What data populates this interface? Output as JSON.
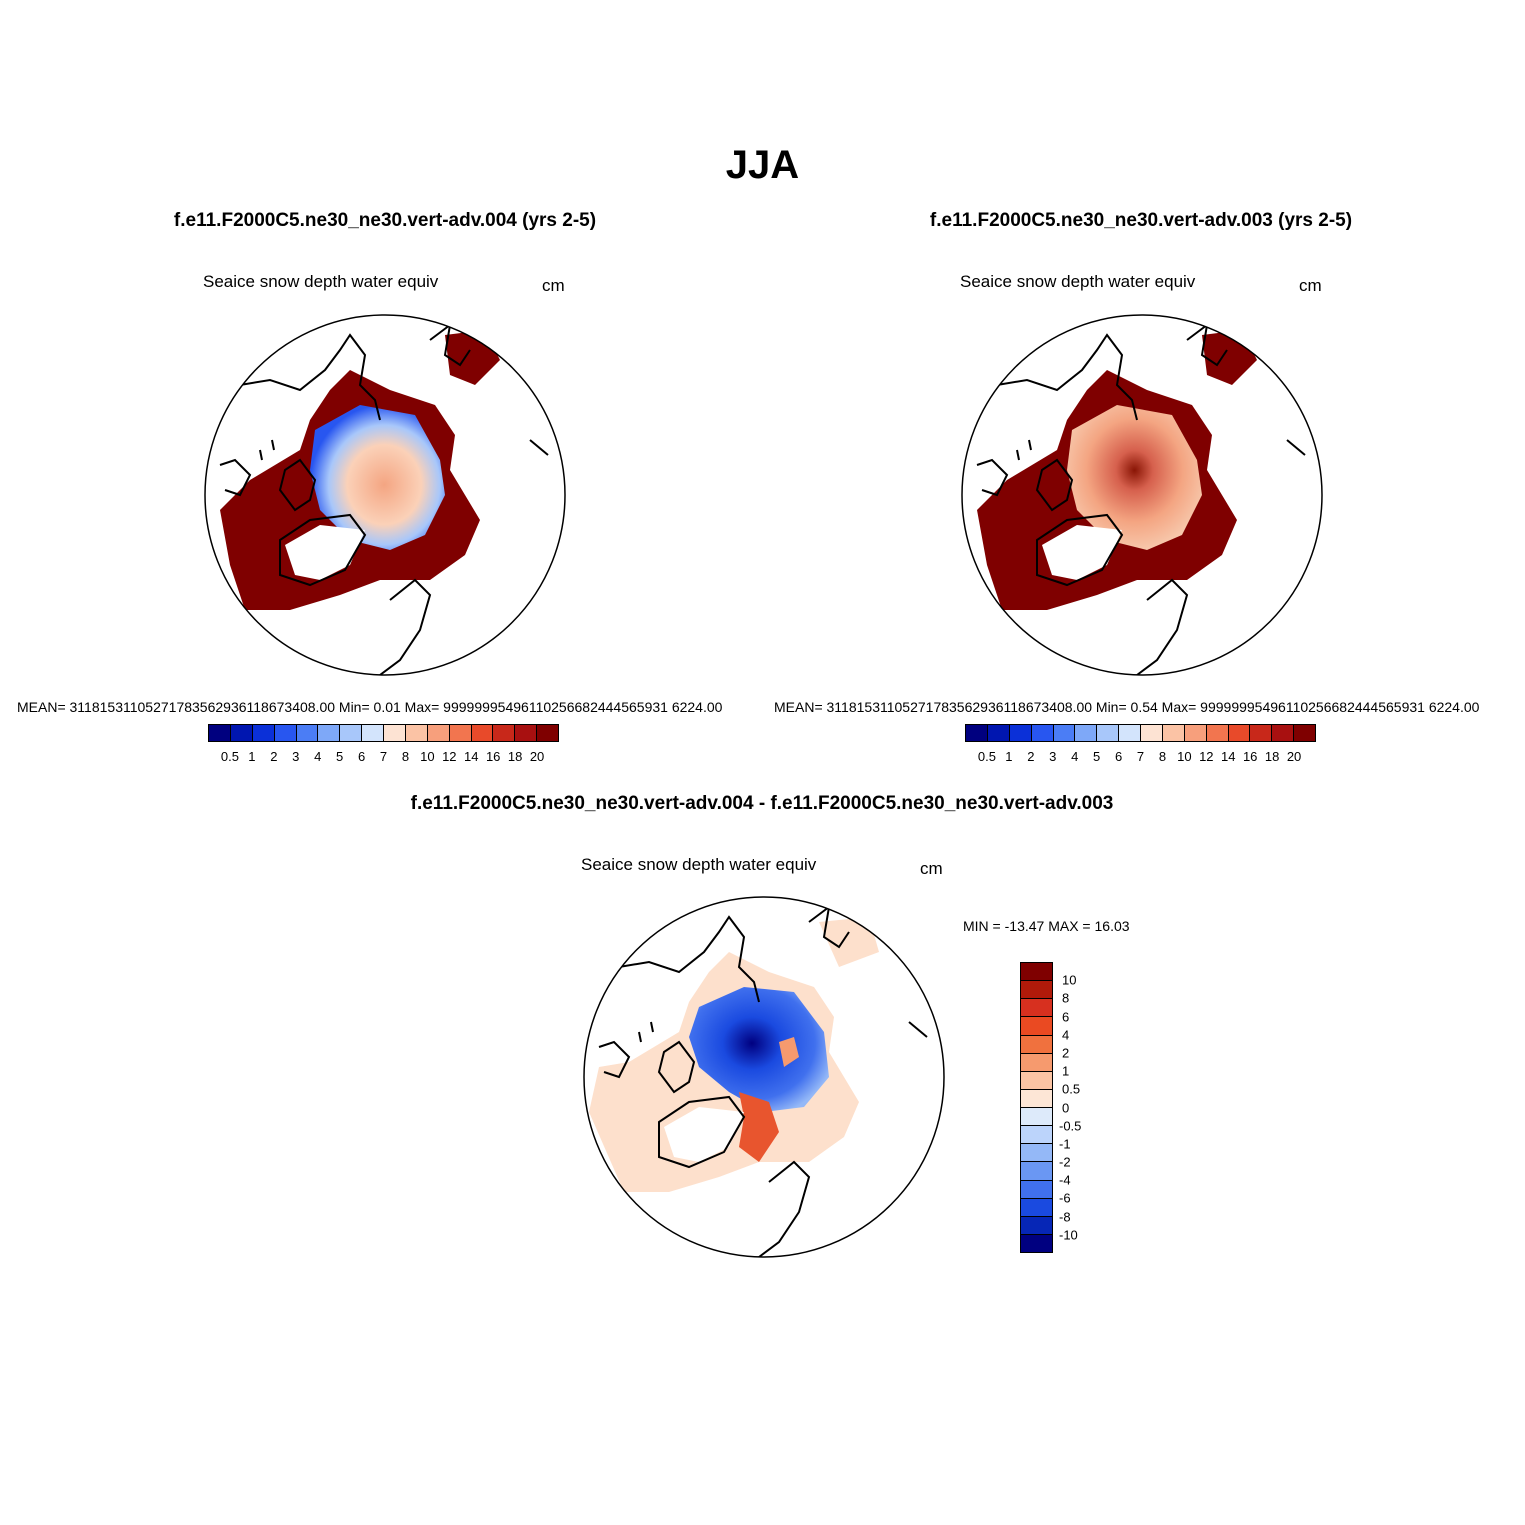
{
  "title": "JJA",
  "panels": [
    {
      "title": "f.e11.F2000C5.ne30_ne30.vert-adv.004 (yrs 2-5)",
      "variable": "Seaice snow depth water equiv",
      "units": "cm",
      "stats": "MEAN= 31181531105271783562936118673408.00  Min=   0.01  Max= 99999995496110256682444565931 6224.00",
      "field_peak_color": "#f4a582"
    },
    {
      "title": "f.e11.F2000C5.ne30_ne30.vert-adv.003 (yrs 2-5)",
      "variable": "Seaice snow depth water equiv",
      "units": "cm",
      "stats": "MEAN= 31181531105271783562936118673408.00  Min=   0.54  Max= 99999995496110256682444565931 6224.00",
      "field_peak_color": "#d6604d"
    }
  ],
  "colorbar": {
    "colors": [
      "#00007f",
      "#0016b0",
      "#0b30d8",
      "#2856f0",
      "#4b7df5",
      "#7ea8f8",
      "#a8c7fa",
      "#d3e4fc",
      "#fde3d3",
      "#fbc3a5",
      "#f79f7c",
      "#f2754f",
      "#e84a2a",
      "#c8281a",
      "#a81010",
      "#7f0000"
    ],
    "labels": [
      "0.5",
      "1",
      "2",
      "3",
      "4",
      "5",
      "6",
      "7",
      "8",
      "10",
      "12",
      "14",
      "16",
      "18",
      "20"
    ]
  },
  "diff": {
    "title": "f.e11.F2000C5.ne30_ne30.vert-adv.004 - f.e11.F2000C5.ne30_ne30.vert-adv.003",
    "variable": "Seaice snow depth water equiv",
    "units": "cm",
    "minmax": "MIN = -13.47 MAX =  16.03",
    "colorbar": {
      "colors": [
        "#7f0000",
        "#b01a0a",
        "#d7301f",
        "#ea4a22",
        "#f0713e",
        "#f69a6e",
        "#fbc4a4",
        "#fde6d6",
        "#ddeafa",
        "#bcd4fb",
        "#94b8f7",
        "#6a97f3",
        "#4070ee",
        "#1a4ae0",
        "#0626b6",
        "#000080"
      ],
      "labels": [
        "10",
        "8",
        "6",
        "4",
        "2",
        "1",
        "0.5",
        "0",
        "-0.5",
        "-1",
        "-2",
        "-4",
        "-6",
        "-8",
        "-10"
      ]
    }
  }
}
